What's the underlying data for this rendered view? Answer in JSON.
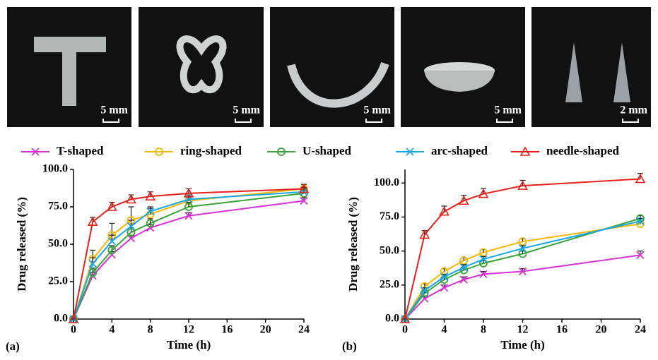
{
  "photos": [
    {
      "scale": "5 mm"
    },
    {
      "scale": "5 mm"
    },
    {
      "scale": "5 mm"
    },
    {
      "scale": "5 mm"
    },
    {
      "scale": "2 mm"
    }
  ],
  "chart_data": [
    {
      "type": "line",
      "panel": "(a)",
      "xlabel": "Time (h)",
      "ylabel": "Drug released (%)",
      "x": [
        0,
        2,
        4,
        6,
        8,
        12,
        24
      ],
      "xlim": [
        0,
        24
      ],
      "xticks": [
        0,
        4,
        8,
        12,
        16,
        20,
        24
      ],
      "ylim": [
        0,
        100
      ],
      "yticks": [
        {
          "value": 0,
          "label": "0.0"
        },
        {
          "value": 25,
          "label": "25.0"
        },
        {
          "value": 50,
          "label": "50.0"
        },
        {
          "value": 75,
          "label": "75.0"
        },
        {
          "value": 100,
          "label": "100.0"
        }
      ],
      "series": [
        {
          "name": "T-shaped",
          "color": "#d633d6",
          "marker": "x",
          "values": [
            0,
            29,
            43,
            54,
            61,
            69,
            79
          ],
          "errors": [
            0,
            2,
            2,
            2,
            2,
            2,
            2
          ]
        },
        {
          "name": "ring-shaped",
          "color": "#f5b800",
          "marker": "circle",
          "values": [
            0,
            40,
            56,
            66,
            70,
            79,
            87
          ],
          "errors": [
            0,
            6,
            8,
            9,
            4,
            3,
            3
          ]
        },
        {
          "name": "U-shaped",
          "color": "#3aa33a",
          "marker": "circle",
          "values": [
            0,
            31,
            46,
            58,
            64,
            75,
            84
          ],
          "errors": [
            0,
            3,
            3,
            3,
            3,
            3,
            3
          ]
        },
        {
          "name": "arc-shaped",
          "color": "#1aa7e8",
          "marker": "x",
          "values": [
            0,
            37,
            52,
            62,
            72,
            80,
            85
          ],
          "errors": [
            0,
            4,
            4,
            4,
            3,
            3,
            3
          ]
        },
        {
          "name": "needle-shaped",
          "color": "#e8201a",
          "marker": "triangle",
          "values": [
            0,
            65,
            75,
            80,
            82,
            84,
            87
          ],
          "errors": [
            0,
            3,
            3,
            3,
            3,
            3,
            3
          ]
        }
      ]
    },
    {
      "type": "line",
      "panel": "(b)",
      "xlabel": "Time (h)",
      "ylabel": "Drug released (%)",
      "x": [
        0,
        2,
        4,
        6,
        8,
        12,
        24
      ],
      "xlim": [
        0,
        24
      ],
      "xticks": [
        0,
        4,
        8,
        12,
        16,
        20,
        24
      ],
      "ylim": [
        0,
        110
      ],
      "yticks": [
        {
          "value": 0,
          "label": "0.0"
        },
        {
          "value": 25,
          "label": "25.0"
        },
        {
          "value": 50,
          "label": "50.0"
        },
        {
          "value": 75,
          "label": "75.0"
        },
        {
          "value": 100,
          "label": "100.0"
        }
      ],
      "series": [
        {
          "color": "#d633d6",
          "marker": "x",
          "values": [
            0,
            15,
            23,
            29,
            33,
            35,
            47
          ],
          "errors": [
            0,
            2,
            2,
            2,
            2,
            2,
            3
          ]
        },
        {
          "color": "#f5b800",
          "marker": "circle",
          "values": [
            0,
            24,
            35,
            43,
            49,
            57,
            70
          ],
          "errors": [
            0,
            2,
            2,
            2,
            2,
            2,
            2
          ]
        },
        {
          "color": "#3aa33a",
          "marker": "circle",
          "values": [
            0,
            19,
            29,
            36,
            41,
            48,
            74
          ],
          "errors": [
            0,
            2,
            2,
            2,
            2,
            2,
            2
          ]
        },
        {
          "color": "#1aa7e8",
          "marker": "x",
          "values": [
            0,
            21,
            31,
            38,
            44,
            52,
            72
          ],
          "errors": [
            0,
            2,
            2,
            2,
            2,
            2,
            2
          ]
        },
        {
          "color": "#e8201a",
          "marker": "triangle",
          "values": [
            0,
            62,
            79,
            87,
            92,
            98,
            103
          ],
          "errors": [
            0,
            3,
            4,
            4,
            4,
            4,
            4
          ]
        }
      ]
    }
  ]
}
